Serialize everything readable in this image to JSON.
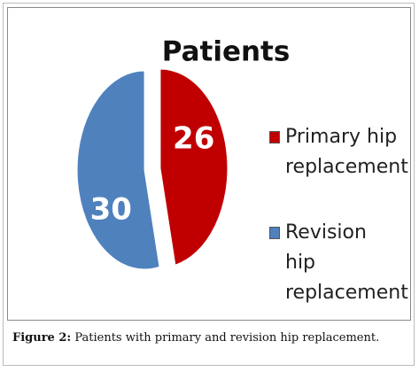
{
  "chart_data": {
    "type": "pie",
    "title": "Patients",
    "categories": [
      "Primary hip replacement",
      "Revision hip replacement"
    ],
    "values": [
      26,
      30
    ],
    "colors": [
      "#c00000",
      "#4f81bd"
    ],
    "exploded": true
  },
  "caption": {
    "label": "Figure 2:",
    "text": "Patients with primary and revision hip replacement."
  }
}
